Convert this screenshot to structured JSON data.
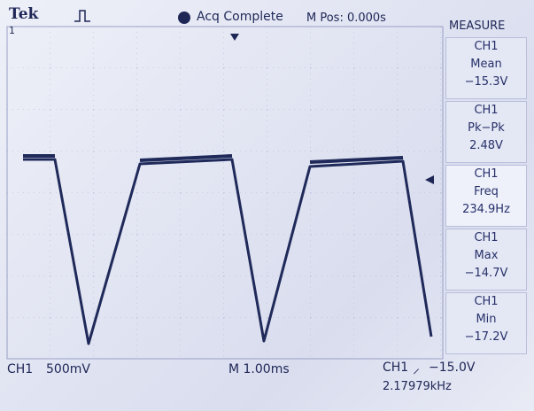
{
  "header": {
    "brand": "Tek",
    "trigger_state": "Acq Complete",
    "position": "M Pos: 0.000s",
    "channel_marker": "1"
  },
  "measure": {
    "title": "MEASURE",
    "items": [
      {
        "channel": "CH1",
        "label": "Mean",
        "value": "−15.3V"
      },
      {
        "channel": "CH1",
        "label": "Pk−Pk",
        "value": "2.48V"
      },
      {
        "channel": "CH1",
        "label": "Freq",
        "value": "234.9Hz"
      },
      {
        "channel": "CH1",
        "label": "Max",
        "value": "−14.7V"
      },
      {
        "channel": "CH1",
        "label": "Min",
        "value": "−17.2V"
      }
    ]
  },
  "footer": {
    "channel": "CH1",
    "volts_div": "500mV",
    "time_div": "M 1.00ms",
    "trigger_channel": "CH1",
    "trigger_level": "−15.0V",
    "trigger_freq": "2.17979kHz"
  }
}
